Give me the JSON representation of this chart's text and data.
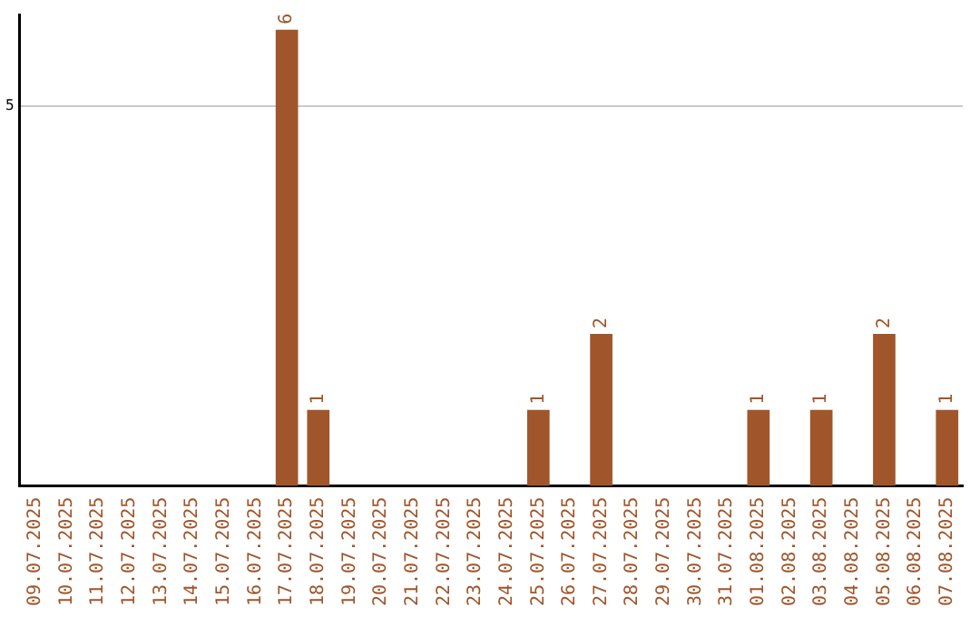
{
  "chart_data": {
    "type": "bar",
    "categories": [
      "09.07.2025",
      "10.07.2025",
      "11.07.2025",
      "12.07.2025",
      "13.07.2025",
      "14.07.2025",
      "15.07.2025",
      "16.07.2025",
      "17.07.2025",
      "18.07.2025",
      "19.07.2025",
      "20.07.2025",
      "21.07.2025",
      "22.07.2025",
      "23.07.2025",
      "24.07.2025",
      "25.07.2025",
      "26.07.2025",
      "27.07.2025",
      "28.07.2025",
      "29.07.2025",
      "30.07.2025",
      "31.07.2025",
      "01.08.2025",
      "02.08.2025",
      "03.08.2025",
      "04.08.2025",
      "05.08.2025",
      "06.08.2025",
      "07.08.2025"
    ],
    "values": [
      0,
      0,
      0,
      0,
      0,
      0,
      0,
      0,
      6,
      1,
      0,
      0,
      0,
      0,
      0,
      0,
      1,
      0,
      2,
      0,
      0,
      0,
      0,
      1,
      0,
      1,
      0,
      2,
      0,
      1
    ],
    "value_labels": [
      null,
      null,
      null,
      null,
      null,
      null,
      null,
      null,
      "6",
      "1",
      null,
      null,
      null,
      null,
      null,
      null,
      "1",
      null,
      "2",
      null,
      null,
      null,
      null,
      "1",
      null,
      "1",
      null,
      "2",
      null,
      "1"
    ],
    "color": "#a0562a",
    "ylim": [
      0,
      6.2
    ],
    "yticks": [
      5
    ],
    "grid": "y",
    "legend": false
  }
}
